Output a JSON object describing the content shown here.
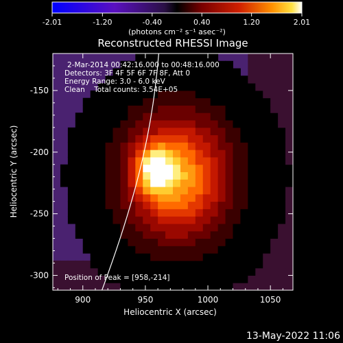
{
  "chart_data": {
    "type": "heatmap",
    "title": "Reconstructed RHESSI Image",
    "xlabel": "Heliocentric X (arcsec)",
    "ylabel": "Heliocentric Y (arcsec)",
    "xlim": [
      876,
      1068
    ],
    "ylim": [
      -312,
      -120
    ],
    "x_ticks": [
      900,
      950,
      1000,
      1050
    ],
    "y_ticks": [
      -150,
      -200,
      -250,
      -300
    ],
    "colorbar": {
      "min": -2.01,
      "max": 2.01,
      "ticks": [
        {
          "value": -2.01,
          "label": "-2.01"
        },
        {
          "value": -1.2,
          "label": "-1.20"
        },
        {
          "value": -0.4,
          "label": "-0.40"
        },
        {
          "value": 0.4,
          "label": "0.40"
        },
        {
          "value": 1.2,
          "label": "1.20"
        },
        {
          "value": 2.01,
          "label": "2.01"
        }
      ],
      "unit_label": "(photons cm⁻² s⁻¹ asec⁻²)",
      "colors": [
        "#0000ff",
        "#5a10c0",
        "#2a1045",
        "#000000",
        "#7a0000",
        "#d02000",
        "#ff9000",
        "#ffe040",
        "#ffffff"
      ]
    },
    "annotations": [
      "2-Mar-2014 00:42:16.000 to 00:48:16.000",
      "Detectors: 3F 4F 5F 6F 7F 8F, Att 0",
      "Energy Range: 3.0 - 6.0 keV",
      "Clean    Total counts: 3.54E+05"
    ],
    "peak_label": "Position of Peak = [958,-214]",
    "peak_position": [
      958,
      -214
    ],
    "background_color": "#4a2270"
  },
  "footer": {
    "timestamp": "13-May-2022 11:06"
  }
}
